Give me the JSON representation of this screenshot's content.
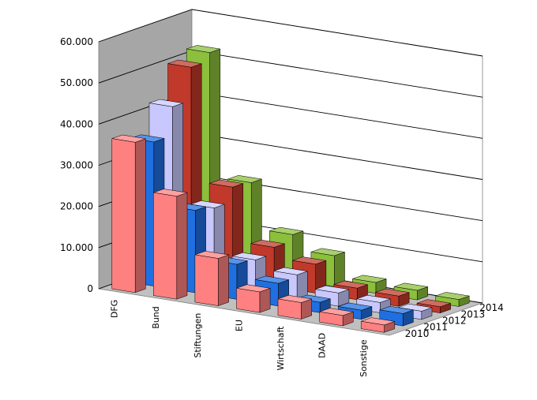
{
  "chart_data": {
    "type": "bar",
    "subtype": "3d-column-grouped-depth",
    "title": "",
    "xlabel": "",
    "ylabel": "",
    "ylim": [
      0,
      60000
    ],
    "yticks": [
      "0",
      "10.000",
      "20.000",
      "30.000",
      "40.000",
      "50.000",
      "60.000"
    ],
    "grid": true,
    "legend": "none",
    "categories": [
      "DFG",
      "Bund",
      "Stiftungen",
      "EU",
      "Wirtschaft",
      "DAAD",
      "Sonstige"
    ],
    "series": [
      {
        "name": "2010",
        "color": "#ff8080",
        "values": [
          36500,
          25000,
          11500,
          5000,
          4000,
          2500,
          1800
        ]
      },
      {
        "name": "2011",
        "color": "#1f6fe0",
        "values": [
          35000,
          20000,
          8500,
          5500,
          2500,
          2200,
          3000
        ]
      },
      {
        "name": "2012",
        "color": "#c8c8ff",
        "values": [
          42000,
          19000,
          8000,
          6000,
          3200,
          2500,
          2000
        ]
      },
      {
        "name": "2013",
        "color": "#c0392b",
        "values": [
          50000,
          22500,
          9500,
          7000,
          2800,
          2500,
          1500
        ]
      },
      {
        "name": "2014",
        "color": "#8bbf3c",
        "values": [
          52000,
          22000,
          11000,
          7500,
          2600,
          2300,
          1700
        ]
      }
    ]
  }
}
